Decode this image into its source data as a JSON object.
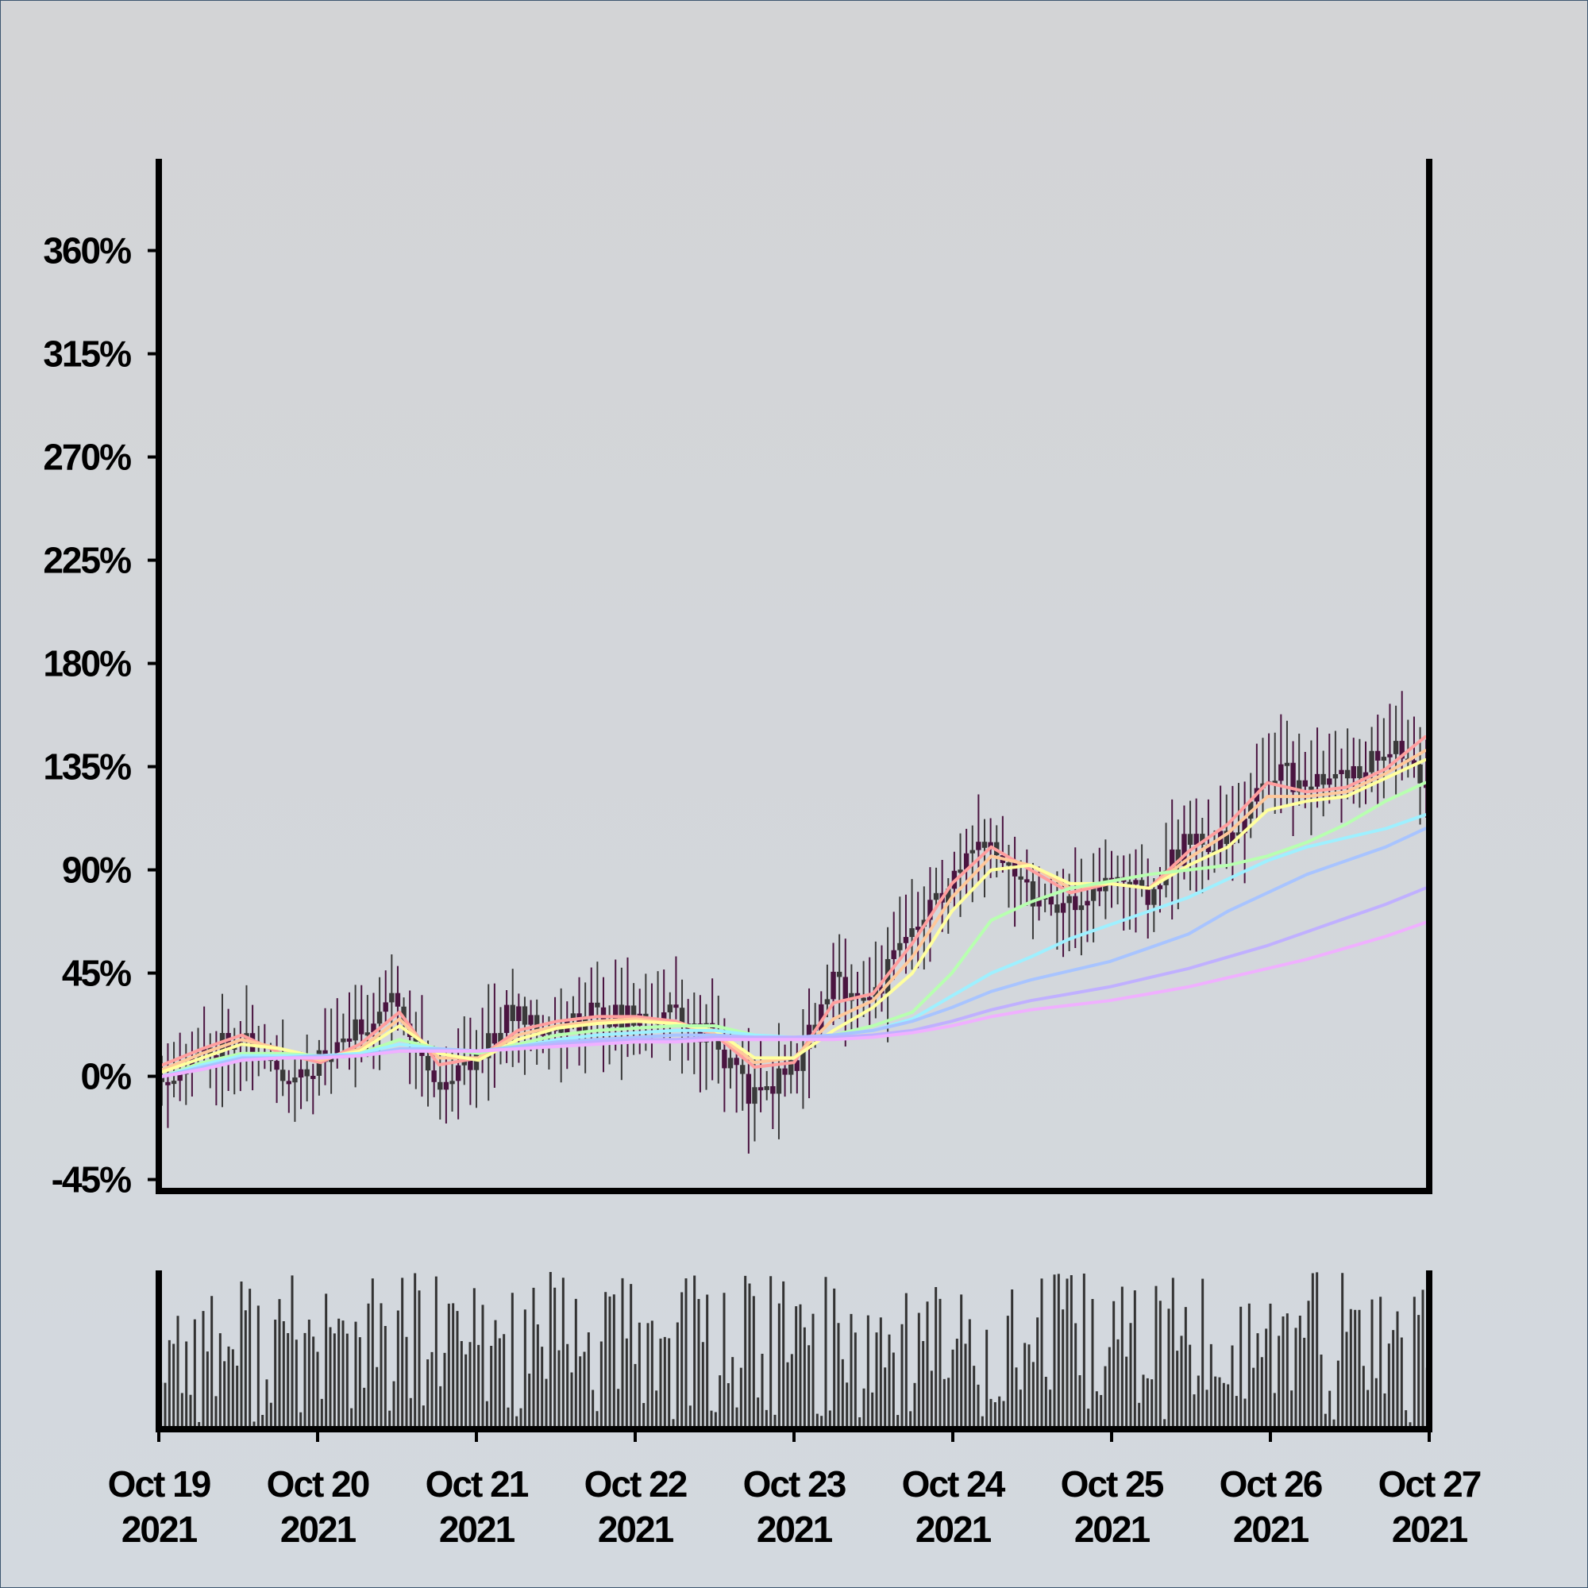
{
  "chart_data": {
    "type": "candlestick",
    "title": "",
    "xlabel": "",
    "ylabel": "",
    "x_range": [
      "2021-10-19",
      "2021-10-27"
    ],
    "x_tick_labels": [
      {
        "date": "2021-10-19",
        "line1": "Oct 19",
        "line2": "2021"
      },
      {
        "date": "2021-10-20",
        "line1": "Oct 20",
        "line2": "2021"
      },
      {
        "date": "2021-10-21",
        "line1": "Oct 21",
        "line2": "2021"
      },
      {
        "date": "2021-10-22",
        "line1": "Oct 22",
        "line2": "2021"
      },
      {
        "date": "2021-10-23",
        "line1": "Oct 23",
        "line2": "2021"
      },
      {
        "date": "2021-10-24",
        "line1": "Oct 24",
        "line2": "2021"
      },
      {
        "date": "2021-10-25",
        "line1": "Oct 25",
        "line2": "2021"
      },
      {
        "date": "2021-10-26",
        "line1": "Oct 26",
        "line2": "2021"
      },
      {
        "date": "2021-10-27",
        "line1": "Oct 27",
        "line2": "2021"
      }
    ],
    "y_ticks": [
      -45,
      0,
      45,
      90,
      135,
      180,
      225,
      270,
      315,
      360
    ],
    "y_tick_labels": [
      "-45%",
      "0%",
      "45%",
      "90%",
      "135%",
      "180%",
      "225%",
      "270%",
      "315%",
      "360%"
    ],
    "ylim": [
      -50,
      400
    ],
    "grid": false,
    "legend": "none",
    "price_series": [
      {
        "date": "2021-10-19",
        "close": 0
      },
      {
        "date": "2021-10-19T06:00",
        "close": 8
      },
      {
        "date": "2021-10-19T12:00",
        "close": 20
      },
      {
        "date": "2021-10-19T18:00",
        "close": 0
      },
      {
        "date": "2021-10-20",
        "close": 5
      },
      {
        "date": "2021-10-20T06:00",
        "close": 20
      },
      {
        "date": "2021-10-20T12:00",
        "close": 35
      },
      {
        "date": "2021-10-20T18:00",
        "close": -5
      },
      {
        "date": "2021-10-21",
        "close": 10
      },
      {
        "date": "2021-10-21T06:00",
        "close": 30
      },
      {
        "date": "2021-10-21T12:00",
        "close": 20
      },
      {
        "date": "2021-10-21T18:00",
        "close": 28
      },
      {
        "date": "2021-10-22",
        "close": 25
      },
      {
        "date": "2021-10-22T06:00",
        "close": 28
      },
      {
        "date": "2021-10-22T12:00",
        "close": 15
      },
      {
        "date": "2021-10-22T18:00",
        "close": -10
      },
      {
        "date": "2021-10-23",
        "close": 5
      },
      {
        "date": "2021-10-23T06:00",
        "close": 40
      },
      {
        "date": "2021-10-23T12:00",
        "close": 35
      },
      {
        "date": "2021-10-23T18:00",
        "close": 65
      },
      {
        "date": "2021-10-24",
        "close": 85
      },
      {
        "date": "2021-10-24T06:00",
        "close": 105
      },
      {
        "date": "2021-10-24T12:00",
        "close": 80
      },
      {
        "date": "2021-10-24T18:00",
        "close": 75
      },
      {
        "date": "2021-10-25",
        "close": 85
      },
      {
        "date": "2021-10-25T06:00",
        "close": 80
      },
      {
        "date": "2021-10-25T12:00",
        "close": 105
      },
      {
        "date": "2021-10-25T18:00",
        "close": 100
      },
      {
        "date": "2021-10-26",
        "close": 135
      },
      {
        "date": "2021-10-26T06:00",
        "close": 125
      },
      {
        "date": "2021-10-26T12:00",
        "close": 130
      },
      {
        "date": "2021-10-26T18:00",
        "close": 145
      },
      {
        "date": "2021-10-27",
        "close": 130
      }
    ],
    "moving_averages": [
      {
        "color": "#ff9e9e",
        "values": [
          5,
          12,
          18,
          10,
          6,
          14,
          28,
          5,
          8,
          20,
          24,
          26,
          26,
          24,
          18,
          4,
          6,
          32,
          36,
          58,
          84,
          100,
          90,
          80,
          84,
          82,
          98,
          110,
          128,
          124,
          126,
          134,
          148
        ]
      },
      {
        "color": "#ffc89a",
        "values": [
          3,
          10,
          16,
          12,
          7,
          12,
          25,
          8,
          8,
          18,
          22,
          24,
          25,
          23,
          19,
          6,
          8,
          25,
          33,
          52,
          78,
          96,
          92,
          82,
          84,
          82,
          95,
          106,
          122,
          122,
          124,
          132,
          142
        ]
      },
      {
        "color": "#ffff9e",
        "values": [
          2,
          8,
          14,
          12,
          8,
          11,
          22,
          10,
          7,
          16,
          21,
          23,
          24,
          23,
          20,
          8,
          8,
          20,
          30,
          45,
          72,
          90,
          92,
          84,
          84,
          82,
          92,
          100,
          116,
          120,
          122,
          130,
          138
        ]
      },
      {
        "color": "#b8ffb0",
        "values": [
          0,
          6,
          10,
          10,
          9,
          10,
          16,
          12,
          10,
          14,
          18,
          20,
          21,
          22,
          22,
          18,
          16,
          18,
          22,
          28,
          45,
          68,
          76,
          82,
          85,
          88,
          90,
          92,
          96,
          102,
          110,
          120,
          128
        ]
      },
      {
        "color": "#9ef0ff",
        "values": [
          0,
          5,
          9,
          9,
          9,
          10,
          14,
          12,
          11,
          13,
          16,
          18,
          19,
          20,
          20,
          18,
          17,
          18,
          20,
          25,
          35,
          45,
          52,
          60,
          66,
          72,
          78,
          86,
          94,
          100,
          104,
          108,
          114
        ]
      },
      {
        "color": "#a8c4ff",
        "values": [
          0,
          4,
          8,
          8,
          9,
          9,
          12,
          12,
          11,
          13,
          15,
          16,
          17,
          18,
          18,
          17,
          17,
          18,
          20,
          24,
          30,
          37,
          42,
          46,
          50,
          56,
          62,
          72,
          80,
          88,
          94,
          100,
          108
        ]
      },
      {
        "color": "#c0b0ff",
        "values": [
          0,
          3,
          7,
          8,
          8,
          9,
          11,
          11,
          11,
          12,
          14,
          15,
          16,
          16,
          17,
          17,
          17,
          17,
          18,
          20,
          24,
          29,
          33,
          36,
          39,
          43,
          47,
          52,
          57,
          63,
          69,
          75,
          82
        ]
      },
      {
        "color": "#f0b0ff",
        "values": [
          0,
          3,
          7,
          8,
          8,
          9,
          11,
          11,
          11,
          12,
          13,
          14,
          15,
          15,
          16,
          16,
          16,
          16,
          17,
          19,
          22,
          26,
          29,
          31,
          33,
          36,
          39,
          43,
          47,
          51,
          56,
          61,
          67
        ]
      }
    ],
    "volume_panel": {
      "axis_labels": false
    }
  }
}
